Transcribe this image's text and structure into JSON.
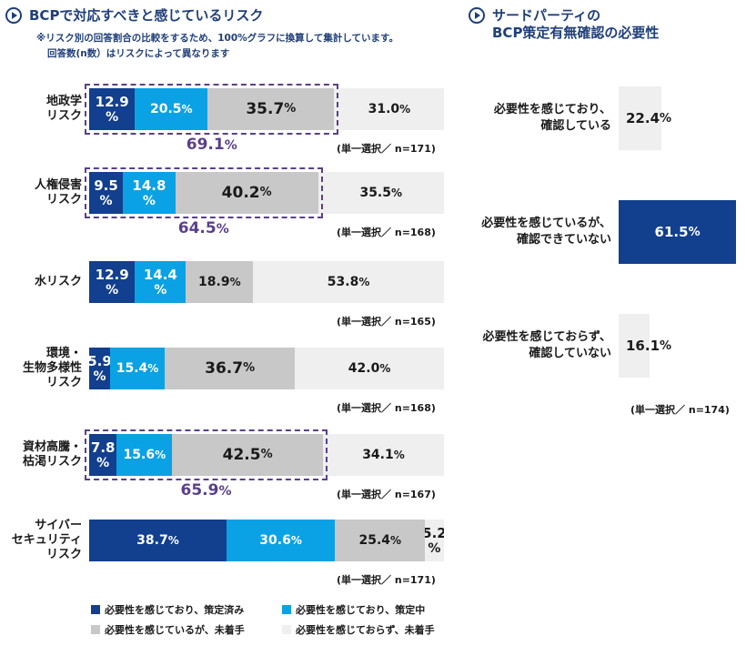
{
  "left": {
    "title": "BCPで対応すべきと感じているリスク",
    "note_line1": "※リスク別の回答割合の比較をするため、100%グラフに換算して集計しています。",
    "note_line2": "回答数(n数）はリスクによって異なります"
  },
  "right": {
    "title_line1": "サードパーティの",
    "title_line2": "BCP策定有無確認の必要性",
    "note": "(単一選択／ n=174)"
  },
  "chart_data": [
    {
      "type": "bar",
      "stacked": true,
      "orientation": "horizontal",
      "normalized_to": 100,
      "title": "BCPで対応すべきと感じているリスク",
      "categories": [
        {
          "label": [
            "地政学",
            "リスク"
          ],
          "n_note": "(単一選択／ n=171)",
          "total_label": "69.1%"
        },
        {
          "label": [
            "人権侵害",
            "リスク"
          ],
          "n_note": "(単一選択／ n=168)",
          "total_label": "64.5%"
        },
        {
          "label": [
            "水リスク"
          ],
          "n_note": "(単一選択／ n=165)",
          "total_label": ""
        },
        {
          "label": [
            "環境・",
            "生物多様性",
            "リスク"
          ],
          "n_note": "(単一選択／ n=168)",
          "total_label": ""
        },
        {
          "label": [
            "資材高騰・",
            "枯渇リスク"
          ],
          "n_note": "(単一選択／ n=167)",
          "total_label": "65.9%"
        },
        {
          "label": [
            "サイバー",
            "セキュリティ",
            "リスク"
          ],
          "n_note": "(単一選択／ n=171)",
          "total_label": ""
        }
      ],
      "series": [
        {
          "name": "必要性を感じており、策定済み",
          "color": "#123f8e",
          "values": [
            12.9,
            9.5,
            12.9,
            5.9,
            7.8,
            38.7
          ]
        },
        {
          "name": "必要性を感じており、策定中",
          "color": "#0aa2e4",
          "values": [
            20.5,
            14.8,
            14.4,
            15.4,
            15.6,
            30.6
          ]
        },
        {
          "name": "必要性を感じているが、未着手",
          "color": "#c8c8c8",
          "values": [
            35.7,
            40.2,
            18.9,
            36.7,
            42.5,
            25.4
          ]
        },
        {
          "name": "必要性を感じておらず、未着手",
          "color": "#efefef",
          "values": [
            31.0,
            35.5,
            53.8,
            42.0,
            34.1,
            5.2
          ]
        }
      ]
    },
    {
      "type": "bar",
      "orientation": "horizontal",
      "title": "サードパーティのBCP策定有無確認の必要性",
      "categories": [
        [
          "必要性を感じており、",
          "確認している"
        ],
        [
          "必要性を感じているが、",
          "確認できていない"
        ],
        [
          "必要性を感じておらず、",
          "確認していない"
        ]
      ],
      "values": [
        22.4,
        61.5,
        16.1
      ],
      "colors": [
        "#efefef",
        "#123f8e",
        "#efefef"
      ]
    }
  ]
}
